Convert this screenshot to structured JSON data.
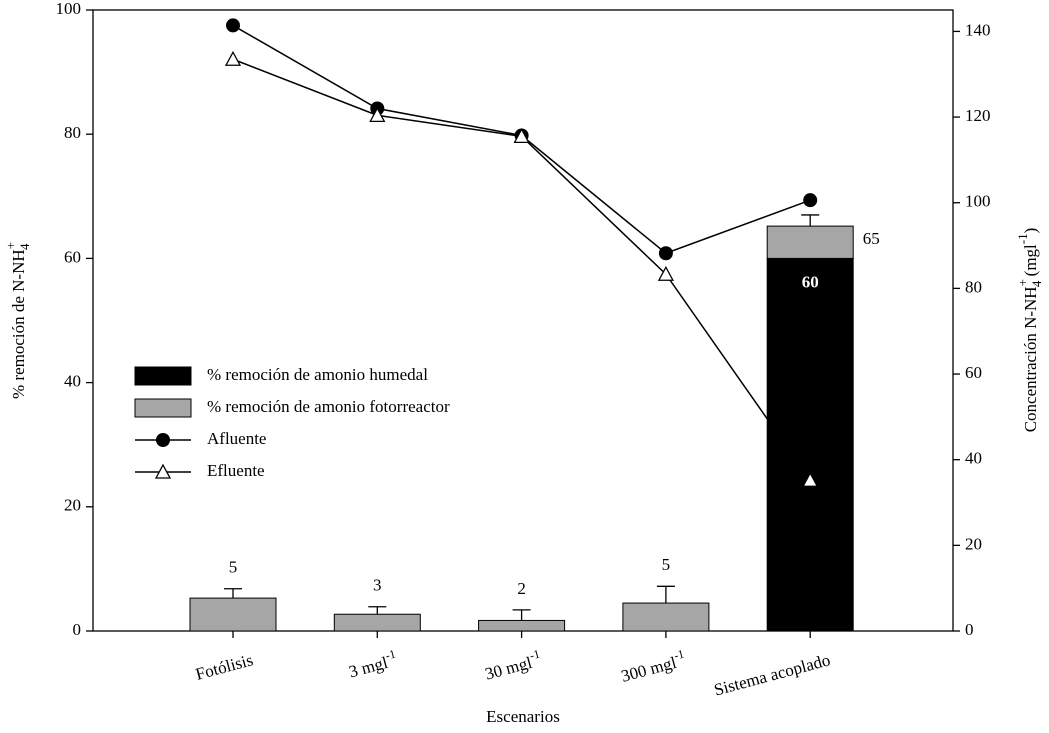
{
  "chart_data": {
    "type": "bar",
    "categories": [
      "Fotólisis",
      "3 mgl-1",
      "30 mgl-1",
      "300 mgl-1",
      "Sistema acoplado"
    ],
    "xlabel": "Escenarios",
    "ylabel": {
      "text": "% remoción de N-NH",
      "sup": "+",
      "sub": "4"
    },
    "y2label": {
      "text": "Concentración N-NH",
      "sup": "+",
      "sub": "4",
      "text2": " (mgl",
      "sup2": "-1",
      "end": ")"
    },
    "ylim": [
      0,
      100
    ],
    "yticks": [
      0,
      20,
      40,
      60,
      80,
      100
    ],
    "y2lim": [
      0,
      145
    ],
    "y2ticks": [
      0,
      20,
      40,
      60,
      80,
      100,
      120,
      140
    ],
    "series": [
      {
        "name": "% remoción de amonio humedal",
        "type": "bar",
        "color": "#000000",
        "values": [
          null,
          null,
          null,
          null,
          60
        ]
      },
      {
        "name": "% remoción de amonio fotorreactor",
        "type": "bar",
        "color": "#a6a6a6",
        "values": [
          5.3,
          2.7,
          1.7,
          4.5,
          5.2
        ],
        "errors": [
          1.5,
          1.2,
          1.7,
          2.7,
          1.8
        ]
      },
      {
        "name": "Afluente",
        "type": "line",
        "axis": "y2",
        "color": "#000000",
        "marker": "circle",
        "values": [
          141.4,
          122,
          115.7,
          88.2,
          100.6
        ]
      },
      {
        "name": "Efluente",
        "type": "line",
        "axis": "y2",
        "color": "#000000",
        "marker": "triangle",
        "values": [
          133.5,
          120.4,
          115.5,
          83.3,
          35.2
        ]
      }
    ],
    "totals": [
      5,
      3,
      2,
      5,
      65
    ]
  }
}
